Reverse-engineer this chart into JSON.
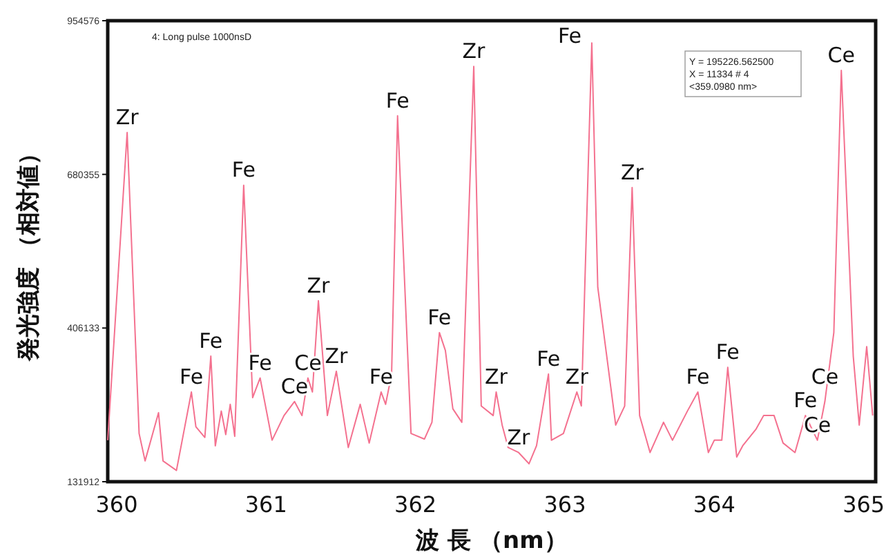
{
  "chart_data": {
    "type": "line",
    "xlabel": "波 長 （nm）",
    "ylabel": "発光強度 （相対値）",
    "xlim": [
      359.94,
      365.08
    ],
    "xticks": [
      360,
      361,
      362,
      363,
      364,
      365
    ],
    "ylim": [
      131912,
      954576
    ],
    "yticks": [
      131912,
      406133,
      680355,
      954576
    ],
    "grid": false,
    "marker": "none",
    "line_style": "solid",
    "x": [
      359.94,
      360.07,
      360.15,
      360.19,
      360.28,
      360.31,
      360.4,
      360.5,
      360.53,
      360.59,
      360.63,
      360.66,
      360.7,
      360.73,
      360.76,
      360.79,
      360.85,
      360.91,
      360.96,
      361.04,
      361.12,
      361.19,
      361.24,
      361.28,
      361.31,
      361.35,
      361.41,
      361.47,
      361.55,
      361.63,
      361.69,
      361.77,
      361.8,
      361.84,
      361.88,
      361.97,
      362.06,
      362.11,
      362.16,
      362.2,
      362.25,
      362.31,
      362.39,
      362.44,
      362.52,
      362.54,
      362.58,
      362.62,
      362.69,
      362.76,
      362.81,
      362.89,
      362.91,
      362.99,
      363.08,
      363.11,
      363.18,
      363.22,
      363.34,
      363.4,
      363.45,
      363.5,
      363.57,
      363.66,
      363.72,
      363.82,
      363.89,
      363.96,
      364.0,
      364.05,
      364.09,
      364.15,
      364.19,
      364.28,
      364.33,
      364.4,
      364.46,
      364.54,
      364.61,
      364.69,
      364.74,
      364.8,
      364.85,
      364.93,
      364.97,
      365.02,
      365.06
    ],
    "series": [
      {
        "color": "#f4718f",
        "values": [
          206000,
          755000,
          218000,
          169000,
          255000,
          169000,
          152000,
          292000,
          230000,
          211000,
          356000,
          196000,
          258000,
          216000,
          270000,
          213000,
          661000,
          282000,
          317000,
          206000,
          250000,
          275000,
          250000,
          317000,
          292000,
          455000,
          250000,
          329000,
          193000,
          270000,
          201000,
          292000,
          270000,
          324000,
          785000,
          218000,
          208000,
          238000,
          398000,
          366000,
          262000,
          238000,
          873000,
          267000,
          250000,
          292000,
          233000,
          193000,
          184000,
          164000,
          196000,
          324000,
          206000,
          218000,
          292000,
          267000,
          915000,
          479000,
          233000,
          267000,
          657000,
          250000,
          184000,
          238000,
          206000,
          258000,
          292000,
          184000,
          206000,
          206000,
          336000,
          176000,
          196000,
          226000,
          250000,
          250000,
          201000,
          184000,
          250000,
          206000,
          275000,
          398000,
          866000,
          356000,
          233000,
          373000,
          250000
        ]
      }
    ],
    "annotations": [
      "4: Long pulse 1000nsD",
      "Y = 195226.562500\nX = 11334   # 4\n<359.0980 nm>",
      {
        "text": "Zr",
        "x": 360.07,
        "y": 755000
      },
      {
        "text": "Fe",
        "x": 360.5,
        "y": 292000
      },
      {
        "text": "Fe",
        "x": 360.63,
        "y": 356000
      },
      {
        "text": "Fe",
        "x": 360.85,
        "y": 661000
      },
      {
        "text": "Fe",
        "x": 360.96,
        "y": 317000
      },
      {
        "text": "Ce",
        "x": 361.19,
        "y": 275000
      },
      {
        "text": "Ce",
        "x": 361.28,
        "y": 317000
      },
      {
        "text": "Zr",
        "x": 361.35,
        "y": 455000
      },
      {
        "text": "Zr",
        "x": 361.47,
        "y": 329000
      },
      {
        "text": "Fe",
        "x": 361.77,
        "y": 292000
      },
      {
        "text": "Fe",
        "x": 361.88,
        "y": 785000
      },
      {
        "text": "Fe",
        "x": 362.16,
        "y": 398000
      },
      {
        "text": "Zr",
        "x": 362.39,
        "y": 873000
      },
      {
        "text": "Zr",
        "x": 362.54,
        "y": 292000
      },
      {
        "text": "Zr",
        "x": 362.69,
        "y": 184000
      },
      {
        "text": "Fe",
        "x": 362.89,
        "y": 324000
      },
      {
        "text": "Zr",
        "x": 363.08,
        "y": 292000
      },
      {
        "text": "Fe",
        "x": 363.18,
        "y": 915000
      },
      {
        "text": "Zr",
        "x": 363.45,
        "y": 657000
      },
      {
        "text": "Fe",
        "x": 363.89,
        "y": 292000
      },
      {
        "text": "Fe",
        "x": 364.09,
        "y": 336000
      },
      {
        "text": "Fe",
        "x": 364.61,
        "y": 250000
      },
      {
        "text": "Ce",
        "x": 364.69,
        "y": 206000
      },
      {
        "text": "Ce",
        "x": 364.74,
        "y": 275000
      },
      {
        "text": "Ce",
        "x": 364.85,
        "y": 866000
      }
    ]
  }
}
